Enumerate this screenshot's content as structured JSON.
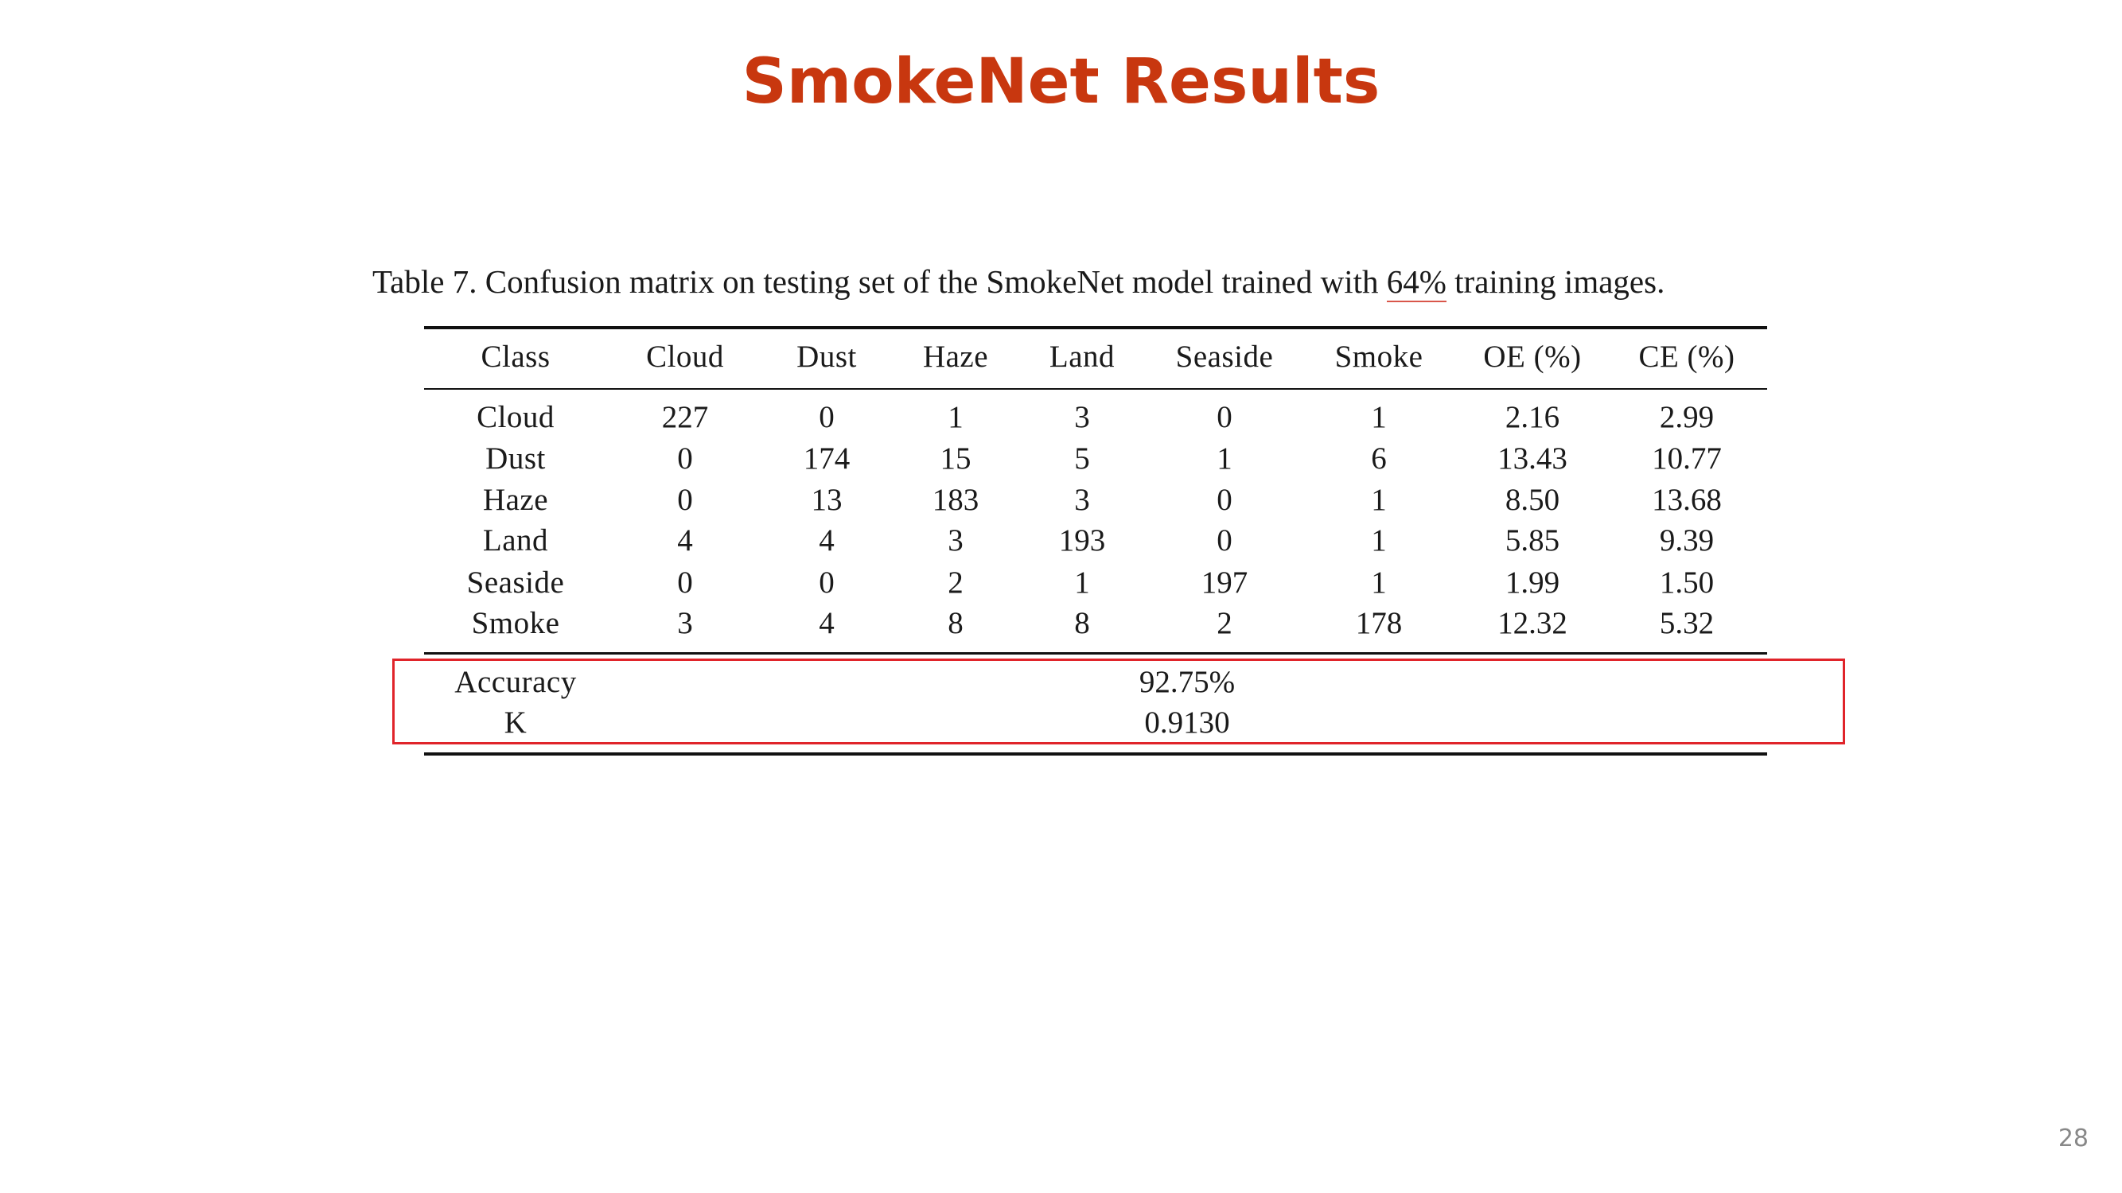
{
  "slide": {
    "title": "SmokeNet Results",
    "page_number": "28"
  },
  "caption": {
    "prefix": "Table 7. Confusion matrix on testing set of the SmokeNet model trained with ",
    "highlight": "64%",
    "suffix": " training images."
  },
  "table": {
    "headers": [
      "Class",
      "Cloud",
      "Dust",
      "Haze",
      "Land",
      "Seaside",
      "Smoke",
      "OE (%)",
      "CE (%)"
    ],
    "rows": [
      [
        "Cloud",
        "227",
        "0",
        "1",
        "3",
        "0",
        "1",
        "2.16",
        "2.99"
      ],
      [
        "Dust",
        "0",
        "174",
        "15",
        "5",
        "1",
        "6",
        "13.43",
        "10.77"
      ],
      [
        "Haze",
        "0",
        "13",
        "183",
        "3",
        "0",
        "1",
        "8.50",
        "13.68"
      ],
      [
        "Land",
        "4",
        "4",
        "3",
        "193",
        "0",
        "1",
        "5.85",
        "9.39"
      ],
      [
        "Seaside",
        "0",
        "0",
        "2",
        "1",
        "197",
        "1",
        "1.99",
        "1.50"
      ],
      [
        "Smoke",
        "3",
        "4",
        "8",
        "8",
        "2",
        "178",
        "12.32",
        "5.32"
      ]
    ],
    "summary": [
      {
        "label": "Accuracy",
        "value": "92.75%"
      },
      {
        "label": "K",
        "value": "0.9130"
      }
    ]
  },
  "colors": {
    "title": "#c8370f",
    "highlight_box": "#e0242a",
    "caption_underline": "#d9564a"
  }
}
